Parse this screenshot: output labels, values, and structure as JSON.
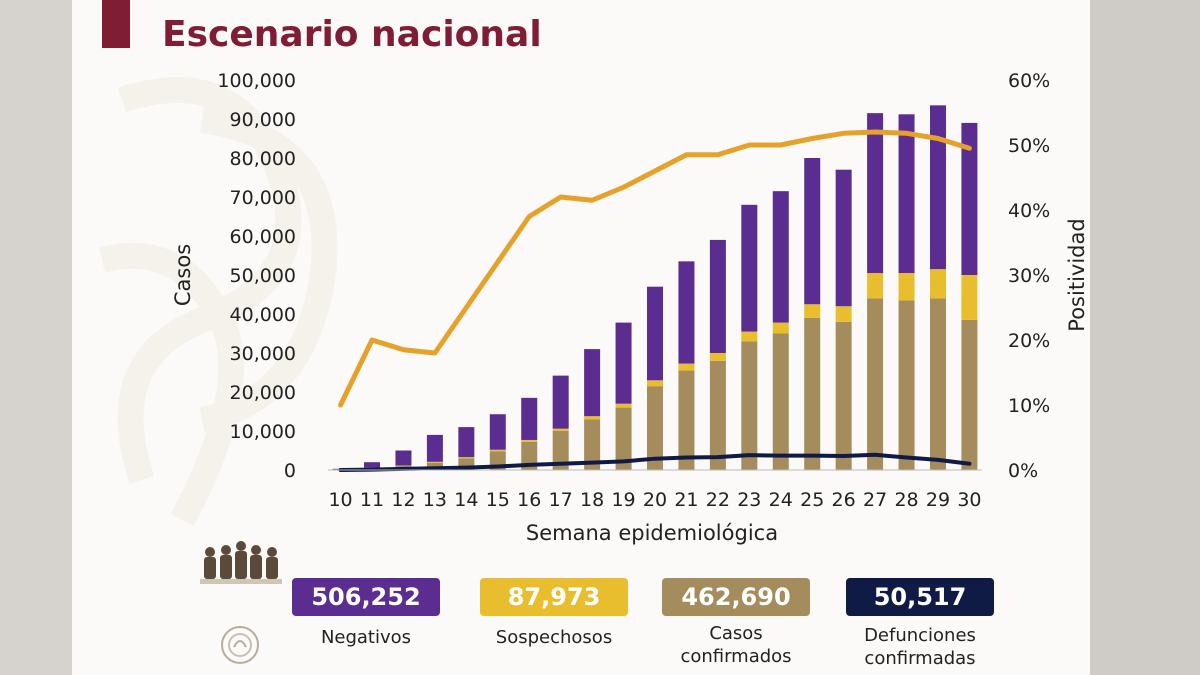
{
  "title": "Escenario nacional",
  "colors": {
    "title": "#7f1d34",
    "negativos": "#5b2d91",
    "sospechosos": "#e8be2e",
    "confirmados": "#a58c5c",
    "defunciones": "#0f1a45",
    "positividad": "#e5a12a"
  },
  "chart_data": {
    "type": "bar",
    "stacked": true,
    "xlabel": "Semana epidemiológica",
    "ylabel": "Casos",
    "y2label": "Positividad",
    "ylim": [
      0,
      100000
    ],
    "y2lim": [
      0,
      60
    ],
    "yticks": [
      "0",
      "10,000",
      "20,000",
      "30,000",
      "40,000",
      "50,000",
      "60,000",
      "70,000",
      "80,000",
      "90,000",
      "100,000"
    ],
    "y2ticks": [
      "0%",
      "10%",
      "20%",
      "30%",
      "40%",
      "50%",
      "60%"
    ],
    "categories": [
      "10",
      "11",
      "12",
      "13",
      "14",
      "15",
      "16",
      "17",
      "18",
      "19",
      "20",
      "21",
      "22",
      "23",
      "24",
      "25",
      "26",
      "27",
      "28",
      "29",
      "30"
    ],
    "series": [
      {
        "name": "Casos confirmados",
        "values": [
          100,
          500,
          1000,
          1800,
          3000,
          4800,
          7200,
          10000,
          13000,
          16000,
          21500,
          25500,
          28000,
          33000,
          35000,
          39000,
          38000,
          44000,
          43500,
          44000,
          38500
        ]
      },
      {
        "name": "Sospechosos",
        "values": [
          50,
          100,
          150,
          300,
          300,
          400,
          500,
          600,
          800,
          1000,
          1500,
          1800,
          2000,
          2500,
          2800,
          3500,
          4000,
          6500,
          7000,
          7500,
          11500
        ]
      },
      {
        "name": "Negativos",
        "values": [
          150,
          1400,
          3850,
          6900,
          7700,
          9100,
          10800,
          13600,
          17200,
          20800,
          24000,
          26200,
          29000,
          32500,
          33700,
          37500,
          35000,
          41000,
          40700,
          42000,
          39000
        ]
      }
    ],
    "lines": [
      {
        "name": "Positividad",
        "axis": "y2",
        "values": [
          10,
          20,
          18.5,
          18,
          25,
          32,
          39,
          42,
          41.5,
          43.5,
          46,
          48.5,
          48.5,
          50,
          50,
          51,
          51.8,
          52,
          51.8,
          51,
          49.5
        ]
      },
      {
        "name": "Defunciones confirmadas",
        "axis": "y",
        "values": [
          0,
          100,
          300,
          450,
          600,
          900,
          1300,
          1600,
          1900,
          2200,
          2900,
          3200,
          3300,
          3800,
          3700,
          3700,
          3600,
          3900,
          3200,
          2600,
          1600
        ]
      }
    ]
  },
  "summary": [
    {
      "value": "506,252",
      "label1": "Negativos",
      "label2": ""
    },
    {
      "value": "87,973",
      "label1": "Sospechosos",
      "label2": ""
    },
    {
      "value": "462,690",
      "label1": "Casos",
      "label2": "confirmados"
    },
    {
      "value": "50,517",
      "label1": "Defunciones",
      "label2": "confirmadas"
    }
  ]
}
